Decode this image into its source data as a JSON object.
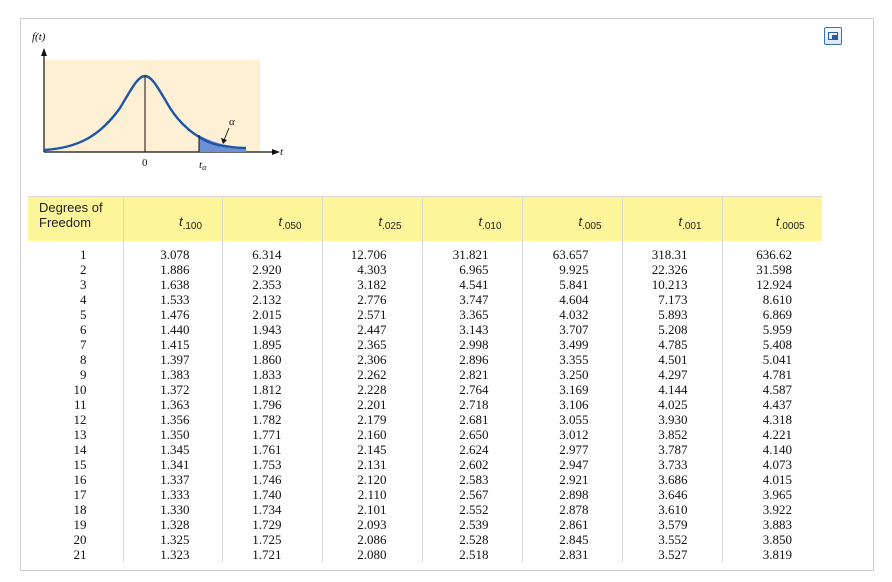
{
  "figure": {
    "y_axis_label": "f(t)",
    "x_axis_label": "t",
    "zero_label": "0",
    "t_alpha_label_main": "t",
    "t_alpha_label_sub": "α",
    "alpha_label": "α",
    "colors": {
      "curve": "#1d56a8",
      "tail_fill": "#6f8fd4",
      "panel": "#fdf0d4"
    }
  },
  "popout_icon": "popout-window-icon",
  "table": {
    "header_df": [
      "Degrees of",
      "Freedom"
    ],
    "columns": [
      {
        "t": "t",
        "sub": ".100"
      },
      {
        "t": "t",
        "sub": ".050"
      },
      {
        "t": "t",
        "sub": ".025"
      },
      {
        "t": "t",
        "sub": ".010"
      },
      {
        "t": "t",
        "sub": ".005"
      },
      {
        "t": "t",
        "sub": ".001"
      },
      {
        "t": "t",
        "sub": ".0005"
      }
    ],
    "header_color": "#fdf59a",
    "rows": [
      [
        "1",
        "3.078",
        "6.314",
        "12.706",
        "31.821",
        "63.657",
        "318.31",
        "636.62"
      ],
      [
        "2",
        "1.886",
        "2.920",
        "4.303",
        "6.965",
        "9.925",
        "22.326",
        "31.598"
      ],
      [
        "3",
        "1.638",
        "2.353",
        "3.182",
        "4.541",
        "5.841",
        "10.213",
        "12.924"
      ],
      [
        "4",
        "1.533",
        "2.132",
        "2.776",
        "3.747",
        "4.604",
        "7.173",
        "8.610"
      ],
      [
        "5",
        "1.476",
        "2.015",
        "2.571",
        "3.365",
        "4.032",
        "5.893",
        "6.869"
      ],
      [
        "6",
        "1.440",
        "1.943",
        "2.447",
        "3.143",
        "3.707",
        "5.208",
        "5.959"
      ],
      [
        "7",
        "1.415",
        "1.895",
        "2.365",
        "2.998",
        "3.499",
        "4.785",
        "5.408"
      ],
      [
        "8",
        "1.397",
        "1.860",
        "2.306",
        "2.896",
        "3.355",
        "4.501",
        "5.041"
      ],
      [
        "9",
        "1.383",
        "1.833",
        "2.262",
        "2.821",
        "3.250",
        "4.297",
        "4.781"
      ],
      [
        "10",
        "1.372",
        "1.812",
        "2.228",
        "2.764",
        "3.169",
        "4.144",
        "4.587"
      ],
      [
        "11",
        "1.363",
        "1.796",
        "2.201",
        "2.718",
        "3.106",
        "4.025",
        "4.437"
      ],
      [
        "12",
        "1.356",
        "1.782",
        "2.179",
        "2.681",
        "3.055",
        "3.930",
        "4.318"
      ],
      [
        "13",
        "1.350",
        "1.771",
        "2.160",
        "2.650",
        "3.012",
        "3.852",
        "4.221"
      ],
      [
        "14",
        "1.345",
        "1.761",
        "2.145",
        "2.624",
        "2.977",
        "3.787",
        "4.140"
      ],
      [
        "15",
        "1.341",
        "1.753",
        "2.131",
        "2.602",
        "2.947",
        "3.733",
        "4.073"
      ],
      [
        "16",
        "1.337",
        "1.746",
        "2.120",
        "2.583",
        "2.921",
        "3.686",
        "4.015"
      ],
      [
        "17",
        "1.333",
        "1.740",
        "2.110",
        "2.567",
        "2.898",
        "3.646",
        "3.965"
      ],
      [
        "18",
        "1.330",
        "1.734",
        "2.101",
        "2.552",
        "2.878",
        "3.610",
        "3.922"
      ],
      [
        "19",
        "1.328",
        "1.729",
        "2.093",
        "2.539",
        "2.861",
        "3.579",
        "3.883"
      ],
      [
        "20",
        "1.325",
        "1.725",
        "2.086",
        "2.528",
        "2.845",
        "3.552",
        "3.850"
      ],
      [
        "21",
        "1.323",
        "1.721",
        "2.080",
        "2.518",
        "2.831",
        "3.527",
        "3.819"
      ]
    ]
  }
}
